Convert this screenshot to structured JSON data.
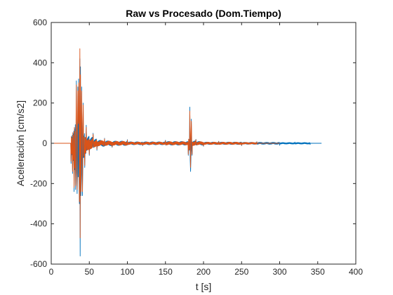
{
  "chart_data": {
    "type": "line",
    "title": "Raw vs Procesado (Dom.Tiempo)",
    "xlabel": "t [s]",
    "ylabel": "Aceleración [cm/s2]",
    "xlim": [
      0,
      400
    ],
    "ylim": [
      -600,
      600
    ],
    "xticks": [
      0,
      50,
      100,
      150,
      200,
      250,
      300,
      350,
      400
    ],
    "yticks": [
      -600,
      -400,
      -200,
      0,
      200,
      400,
      600
    ],
    "grid": false,
    "legend": "none",
    "series": [
      {
        "color": "#0072BD",
        "x": [
          0,
          24,
          26,
          28,
          30,
          32,
          33,
          34,
          35,
          36,
          37,
          37.6,
          38,
          38.4,
          39,
          40,
          41,
          42,
          44,
          46,
          50,
          55,
          60,
          70,
          80,
          100,
          120,
          150,
          180,
          182,
          183,
          184,
          185,
          190,
          200,
          220,
          250,
          270,
          300,
          320,
          340,
          355
        ],
        "y": [
          0,
          0,
          -100,
          -150,
          -240,
          -230,
          310,
          -250,
          280,
          320,
          -300,
          420,
          -560,
          380,
          -260,
          280,
          -260,
          200,
          -120,
          90,
          -60,
          50,
          -35,
          25,
          -20,
          18,
          -12,
          15,
          -60,
          180,
          -140,
          120,
          -60,
          20,
          -15,
          10,
          -12,
          8,
          -10,
          6,
          -6,
          0
        ]
      },
      {
        "color": "#D95319",
        "x": [
          0,
          24,
          26,
          28,
          30,
          32,
          33,
          34,
          35,
          36,
          37,
          37.6,
          38,
          38.4,
          39,
          40,
          41,
          42,
          44,
          46,
          50,
          55,
          60,
          70,
          80,
          100,
          120,
          150,
          180,
          182,
          183,
          184,
          185,
          190,
          200,
          220,
          250,
          270,
          300
        ],
        "y": [
          0,
          0,
          -90,
          -140,
          -220,
          -210,
          290,
          -230,
          260,
          300,
          -290,
          470,
          -470,
          340,
          -240,
          260,
          -240,
          190,
          -110,
          80,
          -55,
          45,
          -30,
          22,
          -18,
          16,
          -10,
          13,
          -55,
          160,
          -120,
          110,
          -55,
          18,
          -13,
          9,
          -10,
          7,
          0
        ]
      }
    ]
  }
}
